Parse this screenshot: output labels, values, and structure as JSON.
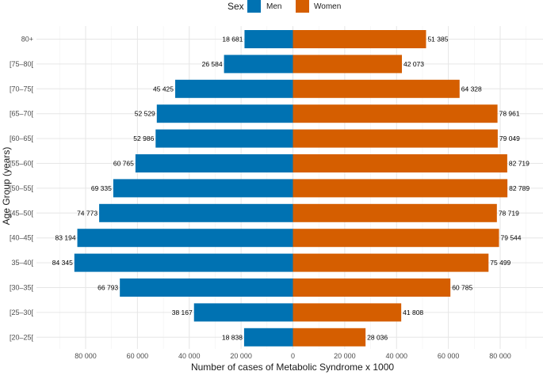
{
  "chart_data": {
    "type": "bar",
    "orientation": "horizontal-diverging",
    "title": "",
    "xlabel": "Number of cases of Metabolic Syndrome x 1000",
    "ylabel": "Age Group (years)",
    "xlim": [
      -100000,
      100000
    ],
    "x_ticks": [
      -80000,
      -60000,
      -40000,
      -20000,
      0,
      20000,
      40000,
      60000,
      80000
    ],
    "x_tick_labels": [
      "80 000",
      "60 000",
      "40 000",
      "20 000",
      "0",
      "20 000",
      "40 000",
      "60 000",
      "80 000"
    ],
    "categories": [
      "[20–25[",
      "[25–30[",
      "[30–35[",
      "35–40[",
      "[40–45[",
      "[45–50[",
      "[50–55[",
      "[55–60[",
      "[60–65[",
      "[65–70[",
      "[70–75[",
      "[75–80[",
      "80+"
    ],
    "legend": {
      "title": "Sex",
      "position": "top",
      "entries": [
        "Men",
        "Women"
      ]
    },
    "series": [
      {
        "name": "Men",
        "color": "#0072B2",
        "values": [
          18838,
          38167,
          66793,
          84345,
          83194,
          74773,
          69335,
          60765,
          52986,
          52529,
          45425,
          26584,
          18681
        ],
        "labels": [
          "18 838",
          "38 167",
          "66 793",
          "84 345",
          "83 194",
          "74 773",
          "69 335",
          "60 765",
          "52 986",
          "52 529",
          "45 425",
          "26 584",
          "18 681"
        ]
      },
      {
        "name": "Women",
        "color": "#D55E00",
        "values": [
          28036,
          41808,
          60785,
          75499,
          79544,
          78719,
          82789,
          82719,
          79049,
          78961,
          64328,
          42073,
          51385
        ],
        "labels": [
          "28 036",
          "41 808",
          "60 785",
          "75 499",
          "79 544",
          "78 719",
          "82 789",
          "82 719",
          "79 049",
          "78 961",
          "64 328",
          "42 073",
          "51 385"
        ]
      }
    ],
    "grid": true
  }
}
